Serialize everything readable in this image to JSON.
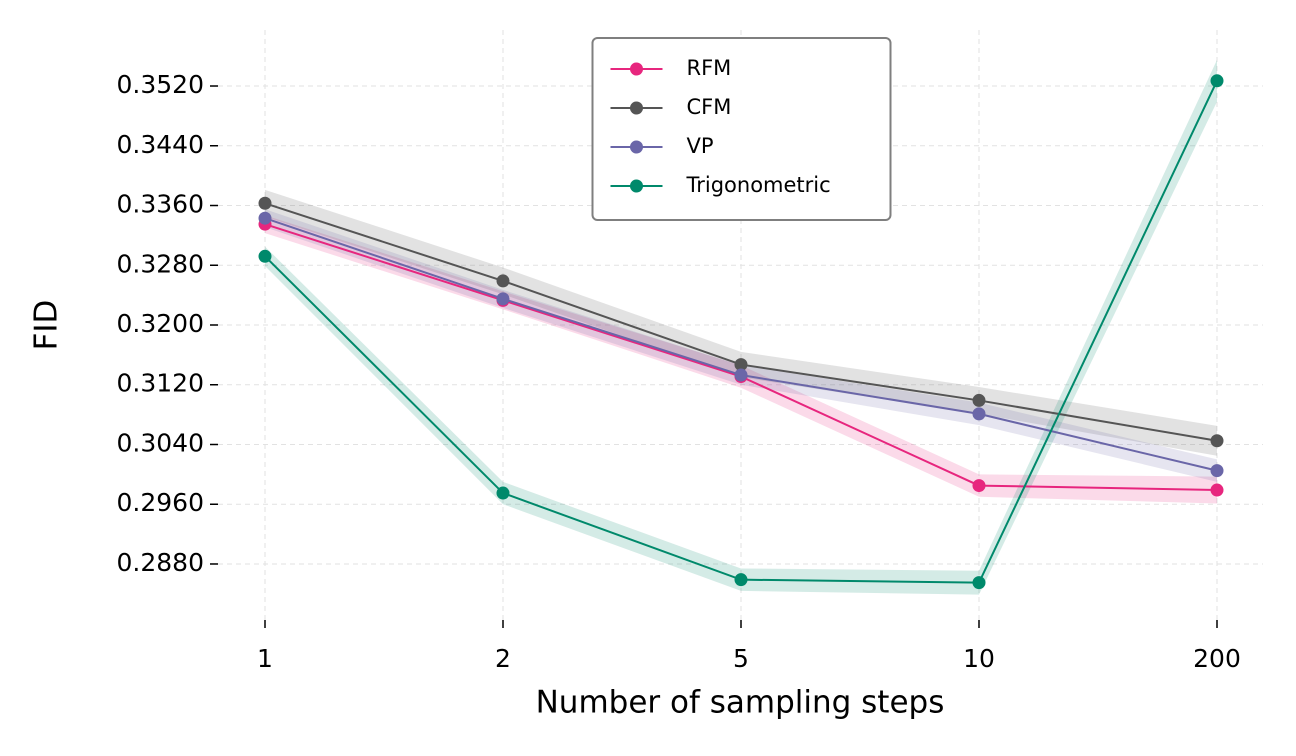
{
  "chart_data": {
    "type": "line",
    "x_label": "Number of sampling steps",
    "y_label": "FID",
    "categories": [
      "1",
      "2",
      "5",
      "10",
      "200"
    ],
    "series": [
      {
        "name": "RFM",
        "color": "#e7267e",
        "values": [
          0.3335,
          0.3233,
          0.3131,
          0.2985,
          0.2979
        ],
        "errors": [
          0.0012,
          0.0012,
          0.0015,
          0.0015,
          0.0018
        ]
      },
      {
        "name": "CFM",
        "color": "#555555",
        "values": [
          0.3363,
          0.3259,
          0.3147,
          0.3099,
          0.3045
        ],
        "errors": [
          0.0018,
          0.0018,
          0.0017,
          0.0018,
          0.002
        ]
      },
      {
        "name": "VP",
        "color": "#6a66a8",
        "values": [
          0.3343,
          0.3235,
          0.3133,
          0.3081,
          0.3005
        ],
        "errors": [
          0.0012,
          0.0012,
          0.0013,
          0.0015,
          0.0015
        ]
      },
      {
        "name": "Trigonometric",
        "color": "#00896b",
        "values": [
          0.3292,
          0.2975,
          0.2859,
          0.2855,
          0.3527
        ],
        "errors": [
          0.0013,
          0.0015,
          0.0015,
          0.0016,
          0.0028
        ]
      }
    ],
    "ylim": [
      0.2805,
      0.3595
    ],
    "yticks": [
      {
        "value": 0.288,
        "label": "0.2880"
      },
      {
        "value": 0.296,
        "label": "0.2960"
      },
      {
        "value": 0.304,
        "label": "0.3040"
      },
      {
        "value": 0.312,
        "label": "0.3120"
      },
      {
        "value": 0.32,
        "label": "0.3200"
      },
      {
        "value": 0.328,
        "label": "0.3280"
      },
      {
        "value": 0.336,
        "label": "0.3360"
      },
      {
        "value": 0.344,
        "label": "0.3440"
      },
      {
        "value": 0.352,
        "label": "0.3520"
      }
    ],
    "grid": true,
    "legend": "upper center"
  }
}
